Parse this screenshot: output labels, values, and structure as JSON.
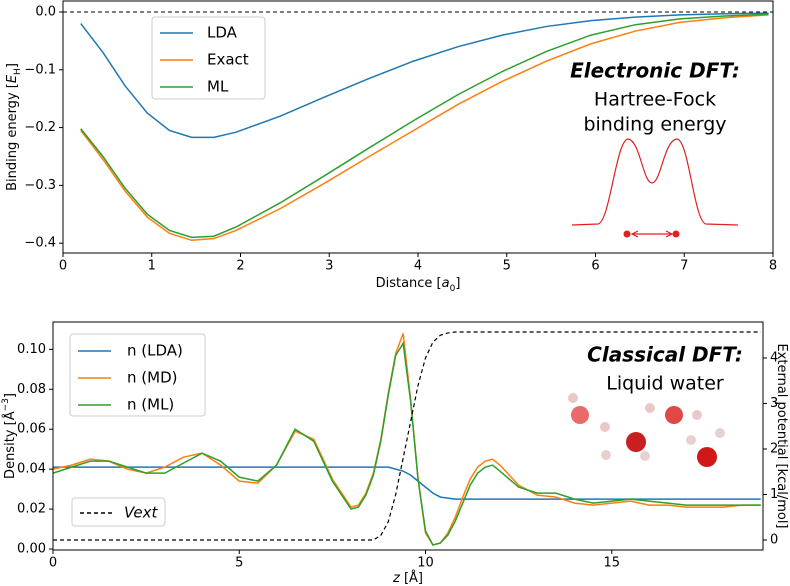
{
  "chart_data": [
    {
      "type": "line",
      "xlabel": [
        {
          "text": "Distance ["
        },
        {
          "text": "a",
          "style": "italic"
        },
        {
          "text": "0",
          "style": "sub"
        },
        {
          "text": "]"
        }
      ],
      "ylabel": [
        {
          "text": "Binding energy ["
        },
        {
          "text": "E",
          "style": "italic"
        },
        {
          "text": "H",
          "style": "sub"
        },
        {
          "text": "]"
        }
      ],
      "annotations": [
        "Electronic DFT:",
        "Hartree-Fock",
        "binding energy"
      ],
      "xlim": [
        0,
        8
      ],
      "xticks": [
        0,
        1,
        2,
        3,
        4,
        5,
        6,
        7,
        8
      ],
      "ylim": [
        -0.417,
        0.019
      ],
      "yticks": [
        {
          "value": 0,
          "label": "0.0"
        },
        {
          "value": -0.1,
          "label": "−0.1"
        },
        {
          "value": -0.2,
          "label": "−0.2"
        },
        {
          "value": -0.3,
          "label": "−0.3"
        },
        {
          "value": -0.4,
          "label": "−0.4"
        }
      ],
      "hline": 0,
      "legend": "upper left",
      "x": [
        0.2,
        0.45,
        0.7,
        0.95,
        1.2,
        1.45,
        1.7,
        1.95,
        2.45,
        2.95,
        3.45,
        3.95,
        4.45,
        4.95,
        5.45,
        5.95,
        6.45,
        6.95,
        7.45,
        7.95
      ],
      "series": [
        {
          "name": "LDA",
          "color": "#1f77b4",
          "values": [
            -0.02,
            -0.07,
            -0.128,
            -0.175,
            -0.205,
            -0.217,
            -0.217,
            -0.208,
            -0.18,
            -0.147,
            -0.115,
            -0.085,
            -0.06,
            -0.04,
            -0.025,
            -0.015,
            -0.009,
            -0.005,
            -0.003,
            -0.002
          ]
        },
        {
          "name": "Exact",
          "color": "#ff7f0e",
          "values": [
            -0.205,
            -0.255,
            -0.31,
            -0.355,
            -0.383,
            -0.395,
            -0.392,
            -0.378,
            -0.34,
            -0.296,
            -0.25,
            -0.205,
            -0.16,
            -0.12,
            -0.085,
            -0.055,
            -0.033,
            -0.018,
            -0.01,
            -0.005
          ]
        },
        {
          "name": "ML",
          "color": "#2ca02c",
          "values": [
            -0.202,
            -0.25,
            -0.305,
            -0.35,
            -0.378,
            -0.39,
            -0.388,
            -0.372,
            -0.33,
            -0.283,
            -0.235,
            -0.188,
            -0.143,
            -0.103,
            -0.068,
            -0.04,
            -0.022,
            -0.012,
            -0.007,
            -0.004
          ]
        }
      ]
    },
    {
      "type": "line",
      "xlabel": [
        {
          "text": "z",
          "style": "italic"
        },
        {
          "text": " [Å]"
        }
      ],
      "ylabel": [
        {
          "text": "Density [Å"
        },
        {
          "text": "−3",
          "style": "sup"
        },
        {
          "text": "]"
        }
      ],
      "y2label": [
        {
          "text": "External potential [kcal/mol]"
        }
      ],
      "annotations": [
        "Classical DFT:",
        "Liquid water"
      ],
      "xlim": [
        0,
        19.06
      ],
      "xticks": [
        0,
        5,
        10,
        15
      ],
      "ylim": [
        -0.0005,
        0.1137
      ],
      "yticks": [
        {
          "value": 0,
          "label": "0.00"
        },
        {
          "value": 0.02,
          "label": "0.02"
        },
        {
          "value": 0.04,
          "label": "0.04"
        },
        {
          "value": 0.06,
          "label": "0.06"
        },
        {
          "value": 0.08,
          "label": "0.08"
        },
        {
          "value": 0.1,
          "label": "0.10"
        }
      ],
      "y2lim": [
        -0.22,
        4.79
      ],
      "y2ticks": [
        0,
        1,
        2,
        3,
        4
      ],
      "legend": "upper left",
      "legend2": "lower left",
      "x": [
        0,
        0.5,
        1,
        1.5,
        2,
        2.5,
        3,
        3.5,
        4,
        4.5,
        5,
        5.5,
        6,
        6.5,
        7,
        7.5,
        8,
        8.2,
        8.4,
        8.6,
        8.8,
        9.0,
        9.2,
        9.4,
        9.6,
        9.8,
        10.0,
        10.2,
        10.4,
        10.6,
        10.8,
        11.0,
        11.2,
        11.4,
        11.6,
        11.8,
        12.0,
        12.5,
        13,
        13.5,
        14,
        14.5,
        15,
        15.5,
        16,
        16.5,
        17,
        17.5,
        18,
        18.5,
        19
      ],
      "series": [
        {
          "name": "n (LDA)",
          "color": "#1f77b4",
          "values": [
            0.041,
            0.041,
            0.041,
            0.041,
            0.041,
            0.041,
            0.041,
            0.041,
            0.041,
            0.041,
            0.041,
            0.041,
            0.041,
            0.041,
            0.041,
            0.041,
            0.041,
            0.041,
            0.041,
            0.041,
            0.041,
            0.041,
            0.04,
            0.039,
            0.037,
            0.034,
            0.031,
            0.028,
            0.026,
            0.0255,
            0.025,
            0.025,
            0.025,
            0.025,
            0.025,
            0.025,
            0.025,
            0.025,
            0.025,
            0.025,
            0.025,
            0.025,
            0.025,
            0.025,
            0.025,
            0.025,
            0.025,
            0.025,
            0.025,
            0.025,
            0.025
          ]
        },
        {
          "name": "n (MD)",
          "color": "#ff7f0e",
          "values": [
            0.04,
            0.042,
            0.045,
            0.044,
            0.04,
            0.038,
            0.041,
            0.046,
            0.048,
            0.042,
            0.034,
            0.033,
            0.042,
            0.059,
            0.055,
            0.035,
            0.021,
            0.022,
            0.028,
            0.038,
            0.055,
            0.078,
            0.098,
            0.108,
            0.075,
            0.035,
            0.008,
            0.002,
            0.003,
            0.008,
            0.016,
            0.026,
            0.035,
            0.041,
            0.044,
            0.045,
            0.042,
            0.032,
            0.027,
            0.026,
            0.023,
            0.022,
            0.023,
            0.024,
            0.022,
            0.022,
            0.021,
            0.021,
            0.021,
            0.022,
            0.022
          ]
        },
        {
          "name": "n (ML)",
          "color": "#2ca02c",
          "values": [
            0.038,
            0.041,
            0.044,
            0.044,
            0.041,
            0.038,
            0.038,
            0.043,
            0.048,
            0.044,
            0.036,
            0.034,
            0.042,
            0.06,
            0.054,
            0.034,
            0.02,
            0.021,
            0.027,
            0.037,
            0.054,
            0.077,
            0.097,
            0.103,
            0.074,
            0.035,
            0.009,
            0.002,
            0.003,
            0.007,
            0.014,
            0.023,
            0.032,
            0.038,
            0.041,
            0.042,
            0.039,
            0.031,
            0.028,
            0.028,
            0.025,
            0.023,
            0.024,
            0.025,
            0.024,
            0.023,
            0.022,
            0.022,
            0.022,
            0.022,
            0.022
          ]
        },
        {
          "name": "Vext",
          "color": "#000000",
          "linestyle": "dashed",
          "axis": "y2",
          "values": [
            0,
            0,
            0,
            0,
            0,
            0,
            0,
            0,
            0,
            0,
            0,
            0,
            0,
            0,
            0,
            0,
            0,
            0,
            0,
            0,
            0.1,
            0.4,
            1.0,
            1.8,
            2.6,
            3.4,
            4.0,
            4.35,
            4.5,
            4.55,
            4.57,
            4.57,
            4.57,
            4.57,
            4.57,
            4.57,
            4.57,
            4.57,
            4.57,
            4.57,
            4.57,
            4.57,
            4.57,
            4.57,
            4.57,
            4.57,
            4.57,
            4.57,
            4.57,
            4.57,
            4.57
          ]
        }
      ]
    }
  ]
}
